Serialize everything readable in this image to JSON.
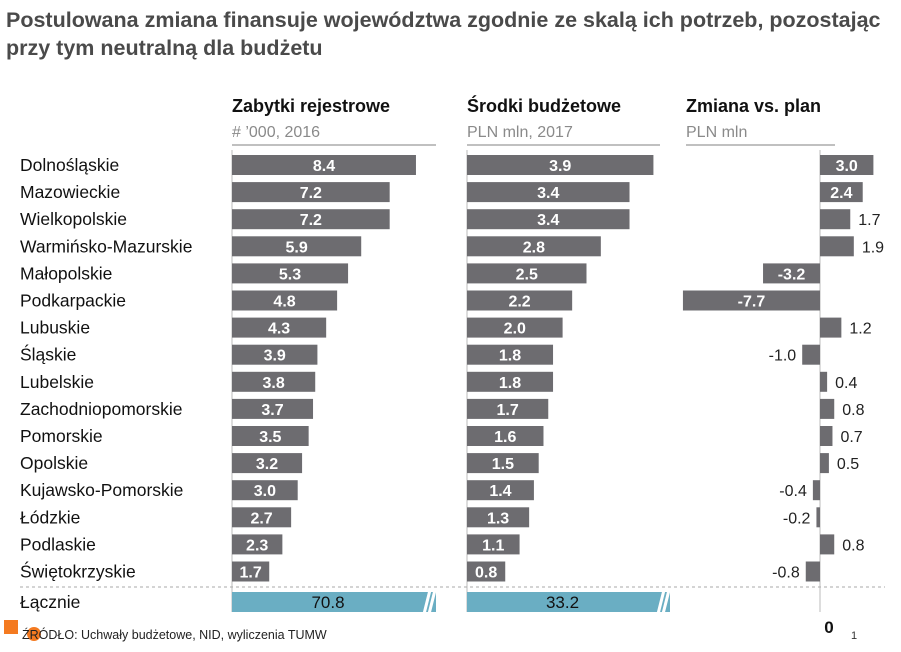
{
  "title": "Postulowana zmiana finansuje województwa zgodnie ze skalą ich potrzeb, pozostając przy tym neutralną dla budżetu",
  "source": "ŹRÓDŁO: Uchwały budżetowe, NID, wyliczenia TUMW",
  "page_number": "1",
  "colors": {
    "bar": "#6d6c70",
    "total": "#6aaec3",
    "title": "#4a4a4a",
    "logo": "#f47a20"
  },
  "chart_data": {
    "type": "bar",
    "categories": [
      "Dolnośląskie",
      "Mazowieckie",
      "Wielkopolskie",
      "Warmińsko-Mazurskie",
      "Małopolskie",
      "Podkarpackie",
      "Lubuskie",
      "Śląskie",
      "Lubelskie",
      "Zachodniopomorskie",
      "Pomorskie",
      "Opolskie",
      "Kujawsko-Pomorskie",
      "Łódzkie",
      "Podlaskie",
      "Świętokrzyskie"
    ],
    "total_label": "Łącznie",
    "series": [
      {
        "name": "Zabytki rejestrowe",
        "subtitle": "# ’000, 2016",
        "values": [
          8.4,
          7.2,
          7.2,
          5.9,
          5.3,
          4.8,
          4.3,
          3.9,
          3.8,
          3.7,
          3.5,
          3.2,
          3.0,
          2.7,
          2.3,
          1.7
        ],
        "labels": [
          "8.4",
          "7.2",
          "7.2",
          "5.9",
          "5.3",
          "4.8",
          "4.3",
          "3.9",
          "3.8",
          "3.7",
          "3.5",
          "3.2",
          "3.0",
          "2.7",
          "2.3",
          "1.7"
        ],
        "total": "70.8"
      },
      {
        "name": "Środki budżetowe",
        "subtitle": "PLN mln, 2017",
        "values": [
          3.9,
          3.4,
          3.4,
          2.8,
          2.5,
          2.2,
          2.0,
          1.8,
          1.8,
          1.7,
          1.6,
          1.5,
          1.4,
          1.3,
          1.1,
          0.8
        ],
        "labels": [
          "3.9",
          "3.4",
          "3.4",
          "2.8",
          "2.5",
          "2.2",
          "2.0",
          "1.8",
          "1.8",
          "1.7",
          "1.6",
          "1.5",
          "1.4",
          "1.3",
          "1.1",
          "0.8"
        ],
        "total": "33.2"
      },
      {
        "name": "Zmiana vs. plan",
        "subtitle": "PLN mln",
        "values": [
          3.0,
          2.4,
          1.7,
          1.9,
          -3.2,
          -7.7,
          1.2,
          -1.0,
          0.4,
          0.8,
          0.7,
          0.5,
          -0.4,
          -0.2,
          0.8,
          -0.8
        ],
        "labels": [
          "3.0",
          "2.4",
          "1.7",
          "1.9",
          "-3.2",
          "-7.7",
          "1.2",
          "-1.0",
          "0.4",
          "0.8",
          "0.7",
          "0.5",
          "-0.4",
          "-0.2",
          "0.8",
          "-0.8"
        ],
        "total": "0"
      }
    ]
  }
}
